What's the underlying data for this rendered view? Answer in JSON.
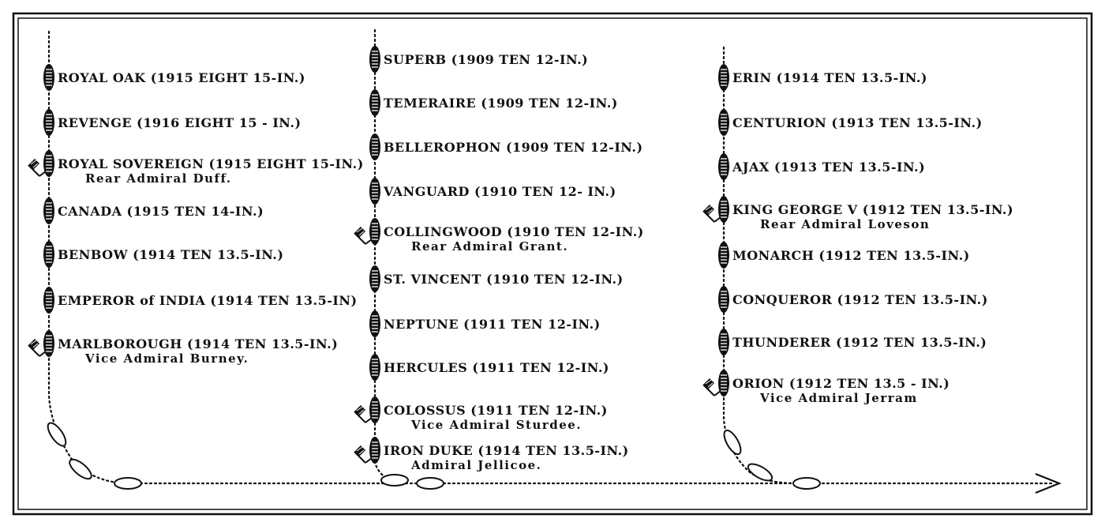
{
  "columns": [
    {
      "ships": [
        {
          "name": "ROYAL OAK",
          "spec": "(1915 EIGHT 15-IN.)",
          "admiral": "",
          "flagship": false
        },
        {
          "name": "REVENGE",
          "spec": "(1916 EIGHT 15 - IN.)",
          "admiral": "",
          "flagship": false
        },
        {
          "name": "ROYAL SOVEREIGN",
          "spec": "(1915 EIGHT 15-IN.)",
          "admiral": "Rear Admiral Duff.",
          "flagship": true
        },
        {
          "name": "CANADA",
          "spec": "(1915 TEN 14-IN.)",
          "admiral": "",
          "flagship": false
        },
        {
          "name": "BENBOW",
          "spec": "(1914 TEN 13.5-IN.)",
          "admiral": "",
          "flagship": false
        },
        {
          "name": "EMPEROR of INDIA",
          "spec": "(1914 TEN 13.5-IN)",
          "admiral": "",
          "flagship": false
        },
        {
          "name": "MARLBOROUGH",
          "spec": "(1914 TEN 13.5-IN.)",
          "admiral": "Vice Admiral Burney.",
          "flagship": true
        }
      ]
    },
    {
      "ships": [
        {
          "name": "SUPERB",
          "spec": "(1909 TEN 12-IN.)",
          "admiral": "",
          "flagship": false
        },
        {
          "name": "TEMERAIRE",
          "spec": "(1909 TEN 12-IN.)",
          "admiral": "",
          "flagship": false
        },
        {
          "name": "BELLEROPHON",
          "spec": "(1909 TEN 12-IN.)",
          "admiral": "",
          "flagship": false
        },
        {
          "name": "VANGUARD",
          "spec": "(1910 TEN 12- IN.)",
          "admiral": "",
          "flagship": false
        },
        {
          "name": "COLLINGWOOD",
          "spec": "(1910 TEN 12-IN.)",
          "admiral": "Rear Admiral Grant.",
          "flagship": true
        },
        {
          "name": "ST. VINCENT",
          "spec": "(1910 TEN 12-IN.)",
          "admiral": "",
          "flagship": false
        },
        {
          "name": "NEPTUNE",
          "spec": "(1911 TEN 12-IN.)",
          "admiral": "",
          "flagship": false
        },
        {
          "name": "HERCULES",
          "spec": "(1911 TEN 12-IN.)",
          "admiral": "",
          "flagship": false
        },
        {
          "name": "COLOSSUS",
          "spec": "(1911 TEN 12-IN.)",
          "admiral": "Vice Admiral Sturdee.",
          "flagship": true
        },
        {
          "name": "IRON DUKE",
          "spec": "(1914 TEN 13.5-IN.)",
          "admiral": "Admiral Jellicoe.",
          "flagship": true
        }
      ]
    },
    {
      "ships": [
        {
          "name": "ERIN",
          "spec": "(1914 TEN 13.5-IN.)",
          "admiral": "",
          "flagship": false
        },
        {
          "name": "CENTURION",
          "spec": "(1913 TEN 13.5-IN.)",
          "admiral": "",
          "flagship": false
        },
        {
          "name": "AJAX",
          "spec": "(1913 TEN 13.5-IN.)",
          "admiral": "",
          "flagship": false
        },
        {
          "name": "KING GEORGE V",
          "spec": "(1912 TEN 13.5-IN.)",
          "admiral": "Rear Admiral Loveson",
          "flagship": true
        },
        {
          "name": "MONARCH",
          "spec": "(1912 TEN 13.5-IN.)",
          "admiral": "",
          "flagship": false
        },
        {
          "name": "CONQUEROR",
          "spec": "(1912 TEN 13.5-IN.)",
          "admiral": "",
          "flagship": false
        },
        {
          "name": "THUNDERER",
          "spec": "(1912 TEN 13.5-IN.)",
          "admiral": "",
          "flagship": false
        },
        {
          "name": "ORION",
          "spec": "(1912 TEN 13.5 - IN.)",
          "admiral": "Vice Admiral Jerram",
          "flagship": true
        }
      ]
    }
  ]
}
